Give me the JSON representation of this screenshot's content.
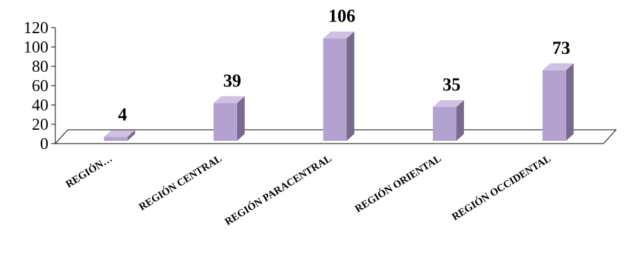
{
  "chart_data": {
    "type": "bar",
    "categories": [
      "REGIÓN…",
      "REGIÓN CENTRAL",
      "REGIÓN PARACENTRAL",
      "REGIÓN ORIENTAL",
      "REGIÓN OCCIDENTAL"
    ],
    "values": [
      4,
      39,
      106,
      35,
      73
    ],
    "data_labels": [
      "4",
      "39",
      "106",
      "35",
      "73"
    ],
    "ylim": [
      0,
      120
    ],
    "yticks": [
      "0",
      "20",
      "40",
      "60",
      "80",
      "100",
      "120"
    ],
    "grid": false,
    "legend": "none",
    "style": "3d-column",
    "colors": {
      "front": "#b3a2cf",
      "side": "#776a8c",
      "top": "#cec1e2",
      "floor": "#ffffff"
    }
  }
}
